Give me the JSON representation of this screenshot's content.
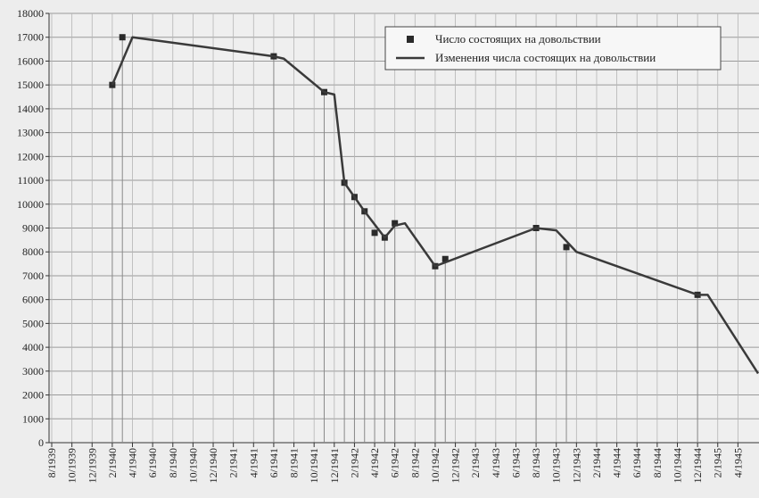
{
  "chart_data": {
    "type": "line",
    "series": [
      {
        "name": "Число состоящих на довольствии",
        "kind": "scatter",
        "color": "#2a2a2a",
        "x": [
          "2/1940",
          "3/1940",
          "6/1941",
          "11/1941",
          "1/1942",
          "2/1942",
          "3/1942",
          "4/1942",
          "5/1942",
          "6/1942",
          "10/1942",
          "11/1942",
          "8/1943",
          "11/1943",
          "12/1944"
        ],
        "values": [
          15000,
          17000,
          16200,
          14700,
          10900,
          10300,
          9700,
          8800,
          8600,
          9200,
          7400,
          7700,
          9000,
          8200,
          6200
        ]
      },
      {
        "name": "Изменения числа состоящих на довольствии",
        "kind": "line",
        "color": "#3a3a3a",
        "x": [
          "2/1940",
          "4/1940",
          "6/1941",
          "7/1941",
          "11/1941",
          "12/1941",
          "1/1942",
          "2/1942",
          "3/1942",
          "5/1942",
          "6/1942",
          "7/1942",
          "10/1942",
          "8/1943",
          "10/1943",
          "12/1943",
          "12/1944",
          "1/1945",
          "6/1945"
        ],
        "values": [
          15000,
          17000,
          16200,
          16100,
          14700,
          14600,
          10900,
          10300,
          9700,
          8600,
          9100,
          9200,
          7400,
          9000,
          8900,
          8000,
          6200,
          6200,
          2900
        ]
      }
    ],
    "xlim": [
      "8/1939",
      "6/1945"
    ],
    "xticks": [
      "8/1939",
      "10/1939",
      "12/1939",
      "2/1940",
      "4/1940",
      "6/1940",
      "8/1940",
      "10/1940",
      "12/1940",
      "2/1941",
      "4/1941",
      "6/1941",
      "8/1941",
      "10/1941",
      "12/1941",
      "2/1942",
      "4/1942",
      "6/1942",
      "8/1942",
      "10/1942",
      "12/1942",
      "2/1943",
      "4/1943",
      "6/1943",
      "8/1943",
      "10/1943",
      "12/1943",
      "2/1944",
      "4/1944",
      "6/1944",
      "8/1944",
      "10/1944",
      "12/1944",
      "2/1945",
      "4/1945"
    ],
    "ylim": [
      0,
      18000
    ],
    "yticks": [
      0,
      1000,
      2000,
      3000,
      4000,
      5000,
      6000,
      7000,
      8000,
      9000,
      10000,
      11000,
      12000,
      13000,
      14000,
      15000,
      16000,
      17000,
      18000
    ],
    "grid": true,
    "legend": "upper right"
  }
}
